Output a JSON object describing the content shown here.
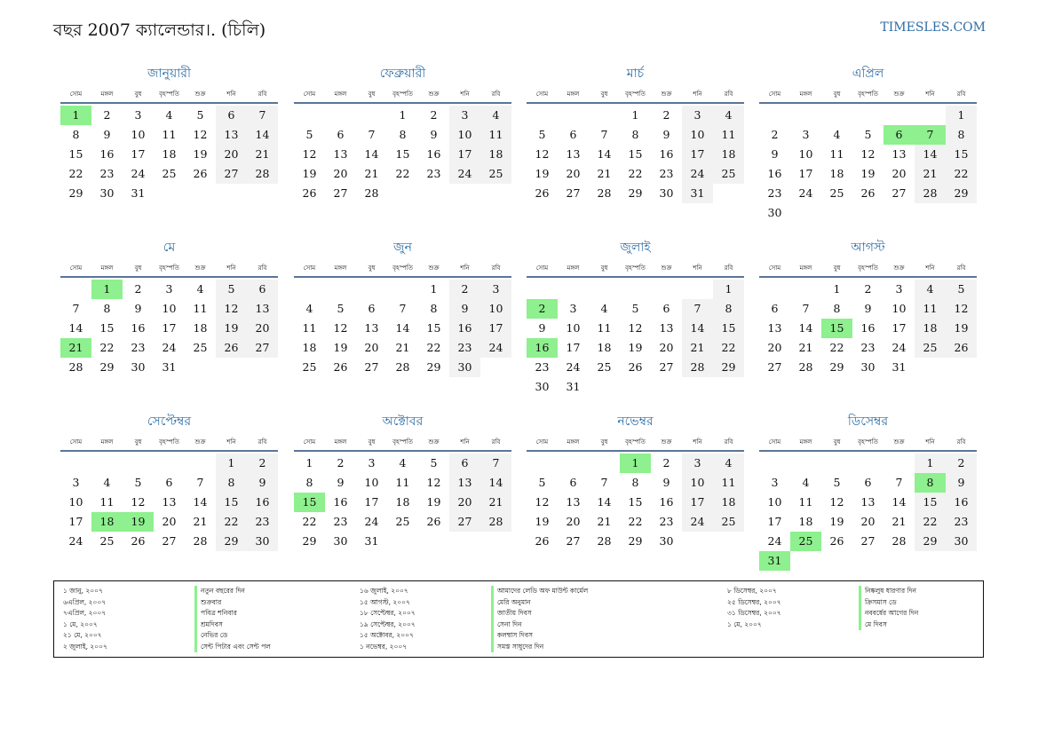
{
  "title": "বছর 2007 ক্যালেন্ডার।. (চিলি)",
  "site": "TIMESLES.COM",
  "weekdays": [
    "সোম",
    "মঙ্গল",
    "বুধ",
    "বৃহস্পতি",
    "শুক্র",
    "শনি",
    "রবি"
  ],
  "months": [
    {
      "name": "জানুয়ারী",
      "offset": 0,
      "days": 31,
      "holidays": [
        1
      ]
    },
    {
      "name": "ফেব্রুয়ারী",
      "offset": 3,
      "days": 28,
      "holidays": []
    },
    {
      "name": "মার্চ",
      "offset": 3,
      "days": 31,
      "holidays": []
    },
    {
      "name": "এপ্রিল",
      "offset": 6,
      "days": 30,
      "holidays": [
        6,
        7
      ]
    },
    {
      "name": "মে",
      "offset": 1,
      "days": 31,
      "holidays": [
        1,
        21
      ]
    },
    {
      "name": "জুন",
      "offset": 4,
      "days": 30,
      "holidays": []
    },
    {
      "name": "জুলাই",
      "offset": 6,
      "days": 31,
      "holidays": [
        2,
        16
      ]
    },
    {
      "name": "আগস্ট",
      "offset": 2,
      "days": 31,
      "holidays": [
        15
      ]
    },
    {
      "name": "সেপ্টেম্বর",
      "offset": 5,
      "days": 30,
      "holidays": [
        18,
        19
      ]
    },
    {
      "name": "অক্টোবর",
      "offset": 0,
      "days": 31,
      "holidays": [
        15
      ]
    },
    {
      "name": "নভেম্বর",
      "offset": 3,
      "days": 30,
      "holidays": [
        1
      ]
    },
    {
      "name": "ডিসেম্বর",
      "offset": 5,
      "days": 31,
      "holidays": [
        8,
        25,
        31
      ]
    }
  ],
  "holiday_list": [
    [
      {
        "date": "১ জানু, ২০০৭",
        "name": "নতুন বছরের দিন"
      },
      {
        "date": "৬এপ্রিল, ২০০৭",
        "name": "শুক্রবার"
      },
      {
        "date": "৭এপ্রিল, ২০০৭",
        "name": "পবিত্র শনিবার"
      },
      {
        "date": "১ মে, ২০০৭",
        "name": "শ্রমদিবস"
      },
      {
        "date": "২১ মে, ২০০৭",
        "name": "নেভির ডে"
      },
      {
        "date": "২ জুলাই, ২০০৭",
        "name": "সেন্ট পিটার এবং সেন্ট পল"
      }
    ],
    [
      {
        "date": "১৬ জুলাই, ২০০৭",
        "name": "আমাদের লেডি অফ মাউন্ট কার্মেল"
      },
      {
        "date": "১৫ আগস্ট, ২০০৭",
        "name": "মেরি অনুমান"
      },
      {
        "date": "১৮ সেপ্টেম্বর, ২০০৭",
        "name": "জাতীয় দিবস"
      },
      {
        "date": "১৯ সেপ্টেম্বর, ২০০৭",
        "name": "সেনা দিন"
      },
      {
        "date": "১৫ অক্টোবর, ২০০৭",
        "name": "কলম্বাস দিবস"
      },
      {
        "date": "১ নভেম্বর, ২০০৭",
        "name": "সমস্ত সাধুদের দিন"
      }
    ],
    [
      {
        "date": "৮ ডিসেম্বর, ২০০৭",
        "name": "নিষ্কলুষ ধারণার দিন"
      },
      {
        "date": "২৫ ডিসেম্বর, ২০০৭",
        "name": "ক্রিসমাস ডে"
      },
      {
        "date": "৩১ ডিসেম্বর, ২০০৭",
        "name": "নববর্ষের আগের দিন"
      },
      {
        "date": "১ মে, ২০০৭",
        "name": "মে দিবস"
      }
    ]
  ]
}
